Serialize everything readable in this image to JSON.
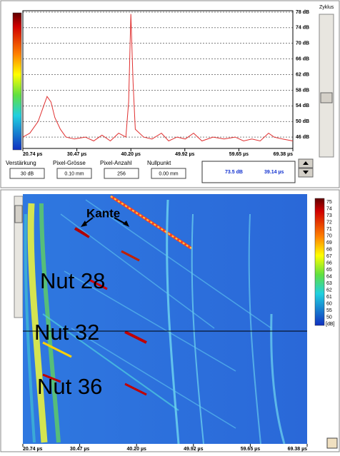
{
  "ascan": {
    "xlim": [
      20.74,
      69.38
    ],
    "ylim": [
      44,
      78
    ],
    "xticks": [
      {
        "value": 20.74,
        "label": "20.74 µs"
      },
      {
        "value": 30.47,
        "label": "30.47 µs"
      },
      {
        "value": 40.2,
        "label": "40.20 µs"
      },
      {
        "value": 49.92,
        "label": "49.92 µs"
      },
      {
        "value": 59.65,
        "label": "59.65 µs"
      },
      {
        "value": 69.38,
        "label": "69.38 µs"
      }
    ],
    "yticks": [
      {
        "value": 78,
        "label": "78 dB"
      },
      {
        "value": 74,
        "label": "74 dB"
      },
      {
        "value": 70,
        "label": "70 dB"
      },
      {
        "value": 66,
        "label": "66 dB"
      },
      {
        "value": 62,
        "label": "62 dB"
      },
      {
        "value": 58,
        "label": "58 dB"
      },
      {
        "value": 54,
        "label": "54 dB"
      },
      {
        "value": 50,
        "label": "50 dB"
      },
      {
        "value": 46,
        "label": "46 dB"
      }
    ],
    "color": "#e03030",
    "x": [
      20.74,
      22,
      23.5,
      24.5,
      25.1,
      25.8,
      26.5,
      27.5,
      28.5,
      30,
      32,
      33.5,
      35,
      36.5,
      38,
      39.3,
      39.8,
      40.2,
      40.6,
      41,
      42.5,
      44,
      45.7,
      47,
      48.5,
      50,
      51.5,
      53,
      55,
      57,
      59,
      60.5,
      62,
      63.5,
      65,
      66,
      67.5,
      69.38
    ],
    "values": [
      46,
      47,
      50,
      54,
      56.4,
      55,
      51,
      48,
      46,
      45.5,
      46,
      45,
      46.5,
      45,
      47,
      46,
      55,
      77.5,
      60,
      48,
      46,
      45.5,
      47,
      45,
      46,
      45.5,
      47,
      45,
      46,
      45.5,
      46,
      45,
      45.5,
      45,
      47,
      46,
      45.5,
      45
    ]
  },
  "side": {
    "label": "Zyklus"
  },
  "params": [
    {
      "label": "Verstärkung",
      "value": "30 dB"
    },
    {
      "label": "Pixel-Grösse",
      "value": "0.10 mm"
    },
    {
      "label": "Pixel-Anzahl",
      "value": "256"
    },
    {
      "label": "Nullpunkt",
      "value": "0.00 mm"
    }
  ],
  "readout": {
    "amplitude": "73.5 dB",
    "time": "39.14 µs"
  },
  "bscan": {
    "xticks": [
      "20.74 µs",
      "30.47 µs",
      "40.20 µs",
      "49.92 µs",
      "59.65 µs",
      "69.38 µs"
    ],
    "colorbar_labels": [
      "75",
      "74",
      "73",
      "72",
      "71",
      "70",
      "69",
      "68",
      "67",
      "66",
      "65",
      "64",
      "63",
      "62",
      "61",
      "60",
      "55",
      "50"
    ],
    "unit": "[dB]",
    "annotations": [
      "Kante",
      "Nut 28",
      "Nut 32",
      "Nut 36"
    ]
  }
}
